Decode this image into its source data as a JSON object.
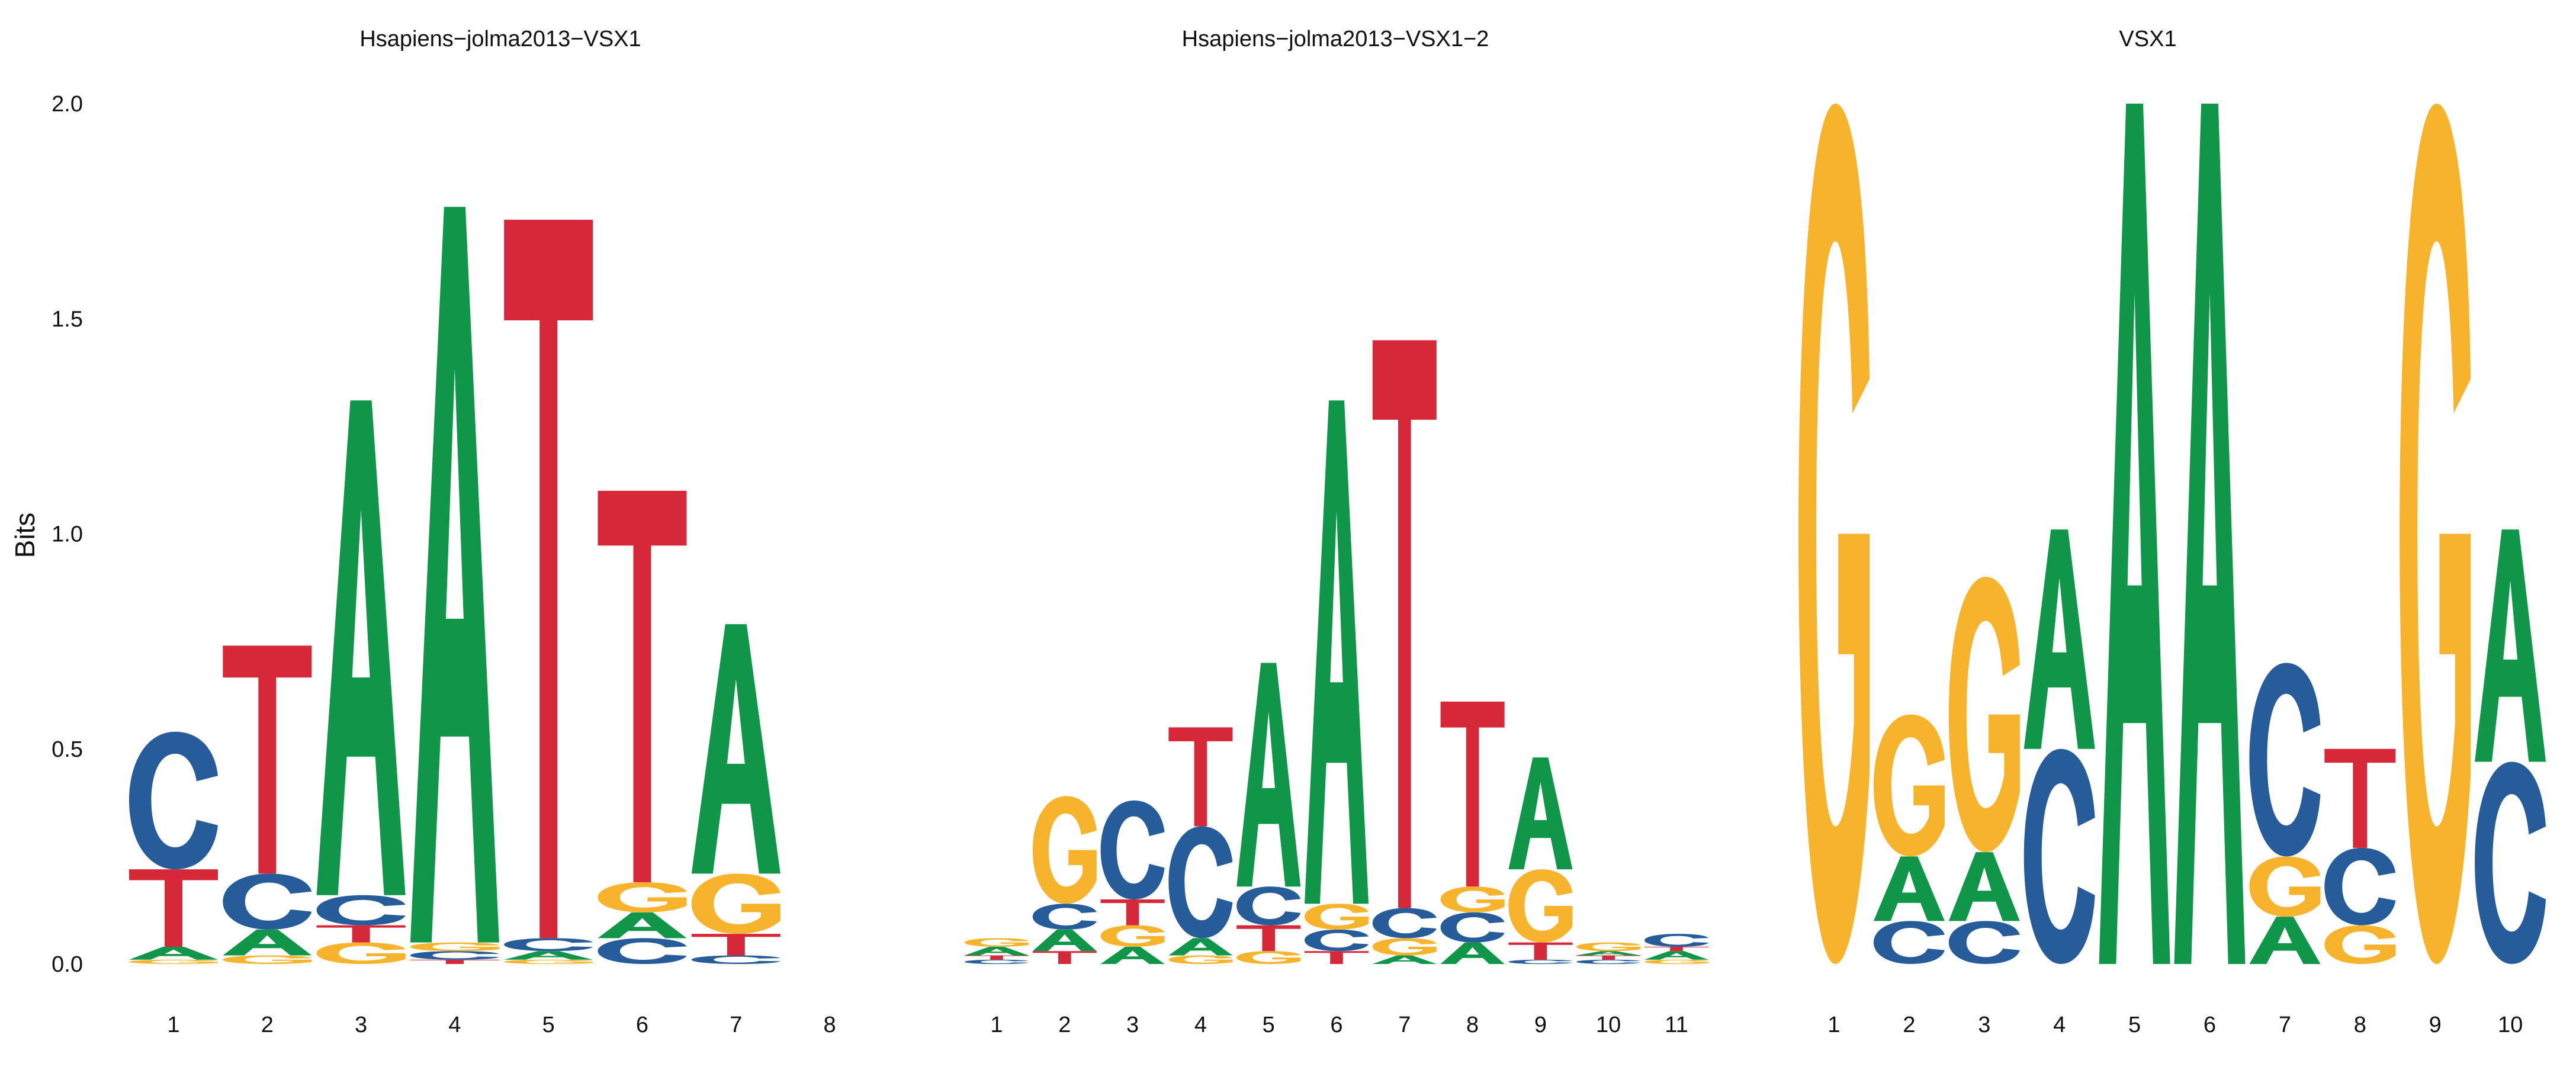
{
  "colors": {
    "A": "#109648",
    "C": "#255C99",
    "G": "#F7B32B",
    "T": "#D62839"
  },
  "chart_data": {
    "type": "sequence-logo",
    "ylabel": "Bits",
    "ylim": [
      0,
      2
    ],
    "yticks": [
      "0.0",
      "0.5",
      "1.0",
      "1.5",
      "2.0"
    ],
    "panels": [
      {
        "title": "Hsapiens−jolma2013−VSX1",
        "positions": [
          "1",
          "2",
          "3",
          "4",
          "5",
          "6",
          "7",
          "8"
        ],
        "columns": [
          [
            {
              "b": "G",
              "h": 0.01
            },
            {
              "b": "A",
              "h": 0.03
            },
            {
              "b": "T",
              "h": 0.18
            },
            {
              "b": "C",
              "h": 0.32
            }
          ],
          [
            {
              "b": "G",
              "h": 0.02
            },
            {
              "b": "A",
              "h": 0.06
            },
            {
              "b": "C",
              "h": 0.13
            },
            {
              "b": "T",
              "h": 0.53
            }
          ],
          [
            {
              "b": "G",
              "h": 0.05
            },
            {
              "b": "T",
              "h": 0.04
            },
            {
              "b": "C",
              "h": 0.07
            },
            {
              "b": "A",
              "h": 1.15
            }
          ],
          [
            {
              "b": "T",
              "h": 0.01
            },
            {
              "b": "C",
              "h": 0.02
            },
            {
              "b": "G",
              "h": 0.02
            },
            {
              "b": "A",
              "h": 1.71
            }
          ],
          [
            {
              "b": "G",
              "h": 0.01
            },
            {
              "b": "A",
              "h": 0.02
            },
            {
              "b": "C",
              "h": 0.03
            },
            {
              "b": "T",
              "h": 1.67
            }
          ],
          [
            {
              "b": "C",
              "h": 0.06
            },
            {
              "b": "A",
              "h": 0.06
            },
            {
              "b": "G",
              "h": 0.07
            },
            {
              "b": "T",
              "h": 0.91
            }
          ],
          [
            {
              "b": "C",
              "h": 0.02
            },
            {
              "b": "T",
              "h": 0.05
            },
            {
              "b": "G",
              "h": 0.14
            },
            {
              "b": "A",
              "h": 0.58
            }
          ],
          []
        ]
      },
      {
        "title": "Hsapiens−jolma2013−VSX1−2",
        "positions": [
          "1",
          "2",
          "3",
          "4",
          "5",
          "6",
          "7",
          "8",
          "9",
          "10",
          "11"
        ],
        "columns": [
          [
            {
              "b": "C",
              "h": 0.01
            },
            {
              "b": "T",
              "h": 0.01
            },
            {
              "b": "A",
              "h": 0.02
            },
            {
              "b": "G",
              "h": 0.02
            }
          ],
          [
            {
              "b": "T",
              "h": 0.03
            },
            {
              "b": "A",
              "h": 0.05
            },
            {
              "b": "C",
              "h": 0.06
            },
            {
              "b": "G",
              "h": 0.25
            }
          ],
          [
            {
              "b": "A",
              "h": 0.04
            },
            {
              "b": "G",
              "h": 0.05
            },
            {
              "b": "T",
              "h": 0.06
            },
            {
              "b": "C",
              "h": 0.23
            }
          ],
          [
            {
              "b": "G",
              "h": 0.02
            },
            {
              "b": "A",
              "h": 0.04
            },
            {
              "b": "C",
              "h": 0.26
            },
            {
              "b": "T",
              "h": 0.23
            }
          ],
          [
            {
              "b": "G",
              "h": 0.03
            },
            {
              "b": "T",
              "h": 0.06
            },
            {
              "b": "C",
              "h": 0.09
            },
            {
              "b": "A",
              "h": 0.52
            }
          ],
          [
            {
              "b": "T",
              "h": 0.03
            },
            {
              "b": "C",
              "h": 0.05
            },
            {
              "b": "G",
              "h": 0.06
            },
            {
              "b": "A",
              "h": 1.17
            }
          ],
          [
            {
              "b": "A",
              "h": 0.02
            },
            {
              "b": "G",
              "h": 0.04
            },
            {
              "b": "C",
              "h": 0.07
            },
            {
              "b": "T",
              "h": 1.32
            }
          ],
          [
            {
              "b": "A",
              "h": 0.05
            },
            {
              "b": "C",
              "h": 0.07
            },
            {
              "b": "G",
              "h": 0.06
            },
            {
              "b": "T",
              "h": 0.43
            }
          ],
          [
            {
              "b": "C",
              "h": 0.01
            },
            {
              "b": "T",
              "h": 0.04
            },
            {
              "b": "G",
              "h": 0.17
            },
            {
              "b": "A",
              "h": 0.26
            }
          ],
          [
            {
              "b": "C",
              "h": 0.01
            },
            {
              "b": "T",
              "h": 0.01
            },
            {
              "b": "A",
              "h": 0.01
            },
            {
              "b": "G",
              "h": 0.02
            }
          ],
          [
            {
              "b": "G",
              "h": 0.01
            },
            {
              "b": "A",
              "h": 0.02
            },
            {
              "b": "T",
              "h": 0.01
            },
            {
              "b": "C",
              "h": 0.03
            }
          ]
        ]
      },
      {
        "title": "VSX1",
        "positions": [
          "1",
          "2",
          "3",
          "4",
          "5",
          "6",
          "7",
          "8",
          "9",
          "10"
        ],
        "columns": [
          [
            {
              "b": "G",
              "h": 2.0
            }
          ],
          [
            {
              "b": "C",
              "h": 0.1
            },
            {
              "b": "A",
              "h": 0.15
            },
            {
              "b": "G",
              "h": 0.33
            }
          ],
          [
            {
              "b": "C",
              "h": 0.1
            },
            {
              "b": "A",
              "h": 0.16
            },
            {
              "b": "G",
              "h": 0.64
            }
          ],
          [
            {
              "b": "C",
              "h": 0.5
            },
            {
              "b": "A",
              "h": 0.51
            }
          ],
          [
            {
              "b": "A",
              "h": 2.0
            }
          ],
          [
            {
              "b": "A",
              "h": 2.0
            }
          ],
          [
            {
              "b": "A",
              "h": 0.11
            },
            {
              "b": "G",
              "h": 0.14
            },
            {
              "b": "C",
              "h": 0.45
            }
          ],
          [
            {
              "b": "G",
              "h": 0.09
            },
            {
              "b": "C",
              "h": 0.18
            },
            {
              "b": "T",
              "h": 0.23
            }
          ],
          [
            {
              "b": "G",
              "h": 2.0
            }
          ],
          [
            {
              "b": "C",
              "h": 0.47
            },
            {
              "b": "A",
              "h": 0.54
            }
          ]
        ]
      }
    ]
  }
}
